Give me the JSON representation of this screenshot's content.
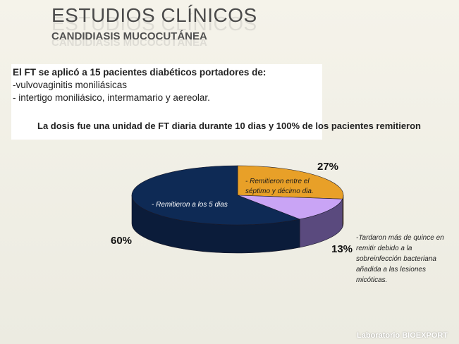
{
  "slide": {
    "title": "ESTUDIOS CLÍNICOS",
    "subtitle": "CANDIDIASIS MUCOCUTÁNEA",
    "intro": {
      "line1": "El FT se aplicó a 15 pacientes diabéticos portadores de:",
      "line2": "-vulvovaginitis moniliásicas",
      "line3": "- intertigo moniliásico, intermamario y aereolar."
    },
    "dose_text": "La dosis fue una unidad de FT diaria durante 10 dias y 100% de los pacientes remitieron",
    "footer": "Laboratorio BIOEXPORT"
  },
  "colors": {
    "slice_60": "#0e2a55",
    "slice_27": "#e8a028",
    "slice_13": "#c9a4f5",
    "side_60": "#0b1c3a",
    "side_13": "#5a4a7e"
  },
  "chart_data": {
    "type": "pie",
    "three_d": true,
    "slices": [
      {
        "label": "- Remitieron a los 5 dias",
        "value": 60,
        "value_label": "60%"
      },
      {
        "label": "- Remitieron entre el séptimo y décimo dia.",
        "value": 27,
        "value_label": "27%"
      },
      {
        "label": "-Tardaron más de quince en remitir debido a la sobreinfección bacteriana añadida a las lesiones micóticas.",
        "value": 13,
        "value_label": "13%"
      }
    ]
  }
}
